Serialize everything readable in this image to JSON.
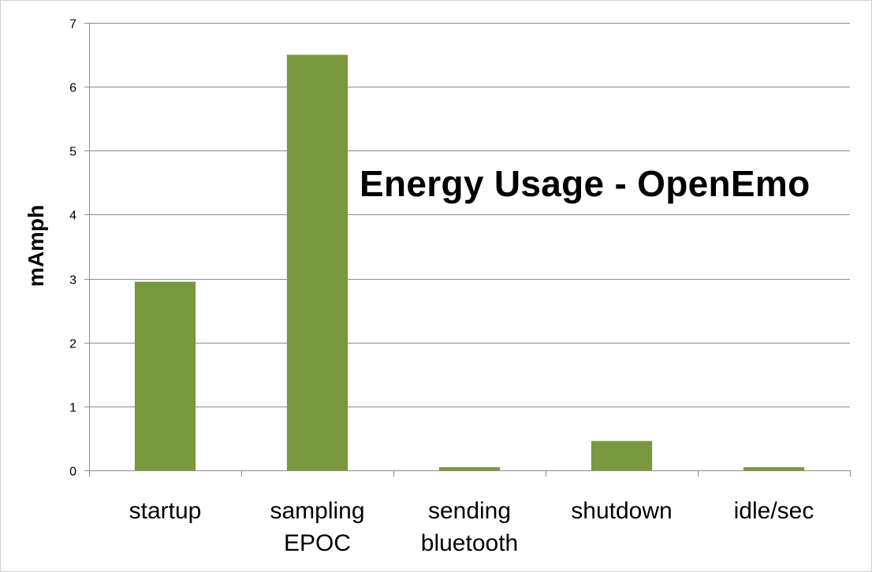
{
  "chart_data": {
    "type": "bar",
    "title": "Energy Usage - OpenEmo",
    "xlabel": "",
    "ylabel": "mAmph",
    "categories": [
      [
        "startup"
      ],
      [
        "sampling",
        "EPOC"
      ],
      [
        "sending",
        "bluetooth"
      ],
      [
        "shutdown"
      ],
      [
        "idle/sec"
      ]
    ],
    "values": [
      2.95,
      6.5,
      0.05,
      0.46,
      0.05
    ],
    "ylim": [
      0,
      7
    ],
    "yticks": [
      "0",
      "1",
      "2",
      "3",
      "4",
      "5",
      "6",
      "7"
    ],
    "grid": true,
    "legend": "none",
    "bar_color": "#7a983e",
    "grid_color": "#8c8c8c"
  }
}
